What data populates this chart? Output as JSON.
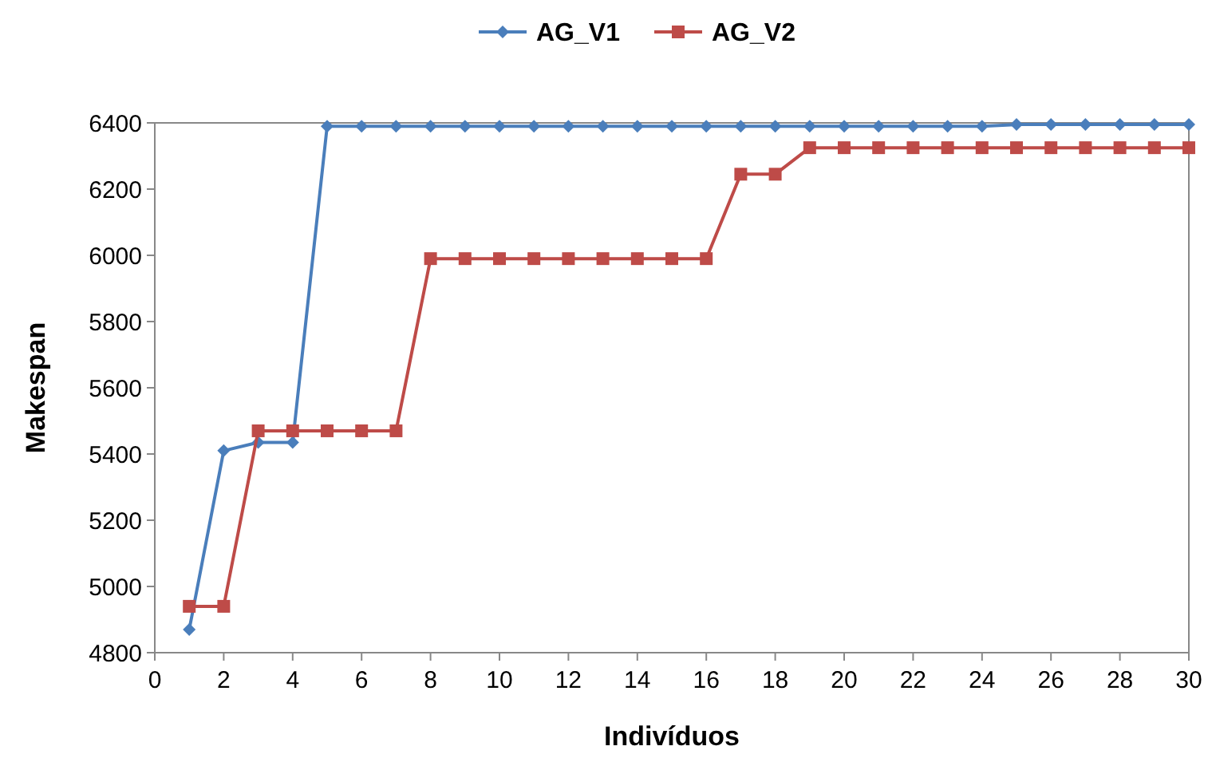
{
  "chart_data": {
    "type": "line",
    "xlabel": "Indivíduos",
    "ylabel": "Makespan",
    "legend": "top",
    "x": [
      1,
      2,
      3,
      4,
      5,
      6,
      7,
      8,
      9,
      10,
      11,
      12,
      13,
      14,
      15,
      16,
      17,
      18,
      19,
      20,
      21,
      22,
      23,
      24,
      25,
      26,
      27,
      28,
      29,
      30
    ],
    "xlim": [
      0,
      30
    ],
    "xticks": [
      0,
      2,
      4,
      6,
      8,
      10,
      12,
      14,
      16,
      18,
      20,
      22,
      24,
      26,
      28,
      30
    ],
    "ylim": [
      4800,
      6400
    ],
    "yticks": [
      4800,
      5000,
      5200,
      5400,
      5600,
      5800,
      6000,
      6200,
      6400
    ],
    "series": [
      {
        "name": "AG_V1",
        "color": "#4a7ebb",
        "marker": "diamond",
        "values": [
          4870,
          5410,
          5435,
          5435,
          6390,
          6390,
          6390,
          6390,
          6390,
          6390,
          6390,
          6390,
          6390,
          6390,
          6390,
          6390,
          6390,
          6390,
          6390,
          6390,
          6390,
          6390,
          6390,
          6390,
          6395,
          6395,
          6395,
          6395,
          6395,
          6395
        ]
      },
      {
        "name": "AG_V2",
        "color": "#be4b48",
        "marker": "square",
        "values": [
          4940,
          4940,
          5470,
          5470,
          5470,
          5470,
          5470,
          5990,
          5990,
          5990,
          5990,
          5990,
          5990,
          5990,
          5990,
          5990,
          6245,
          6245,
          6325,
          6325,
          6325,
          6325,
          6325,
          6325,
          6325,
          6325,
          6325,
          6325,
          6325,
          6325
        ]
      }
    ]
  }
}
